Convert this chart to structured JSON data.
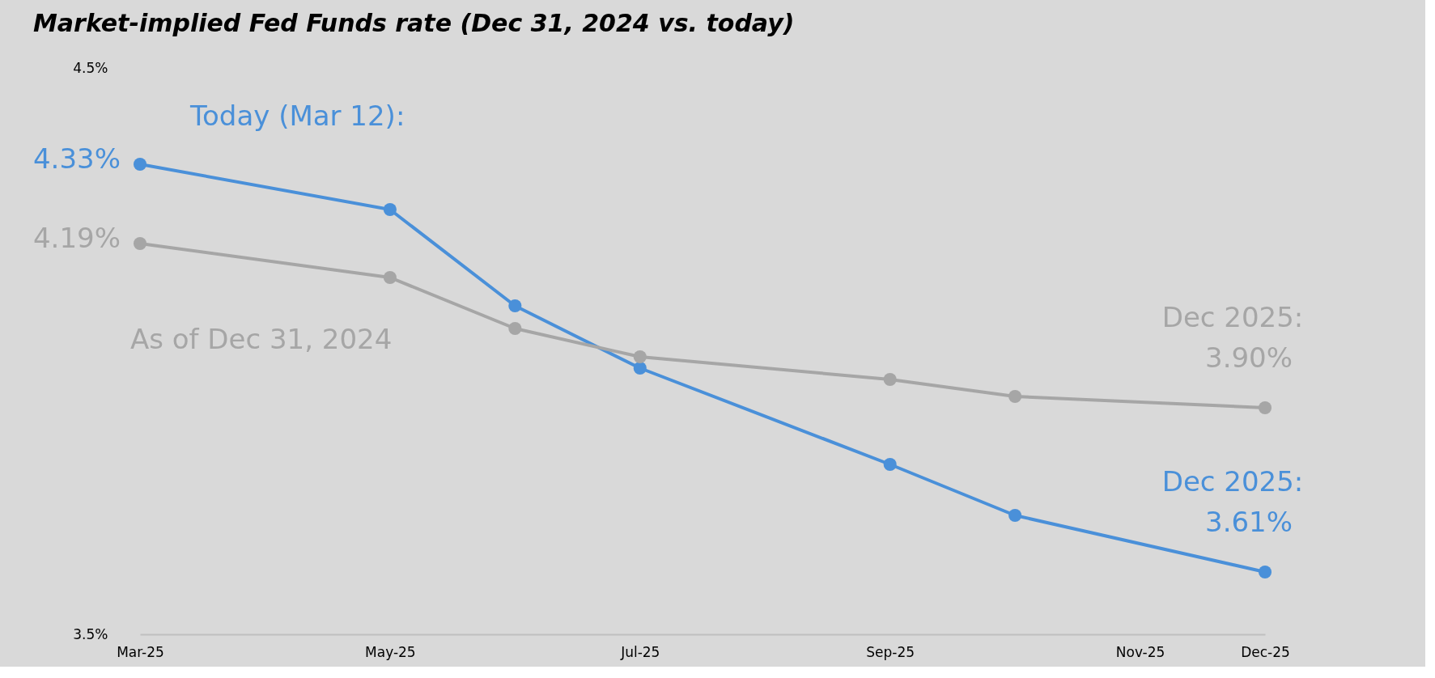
{
  "chart_data": {
    "type": "line",
    "title": "Market-implied Fed Funds rate (Dec 31, 2024 vs. today)",
    "categories": [
      "Mar-25",
      null,
      "May-25",
      null,
      "Jul-25",
      null,
      "Sep-25",
      null,
      "Nov-25",
      "Dec-25"
    ],
    "series": [
      {
        "name": "Today (Mar 12):",
        "color": "#4a90d9",
        "values": [
          4.33,
          null,
          4.25,
          4.08,
          3.97,
          null,
          3.8,
          3.71,
          null,
          3.61
        ],
        "value_labels": [
          "4.33%",
          null,
          null,
          null,
          null,
          null,
          null,
          null,
          null,
          "3.61%"
        ]
      },
      {
        "name": "As of Dec 31, 2024",
        "color": "#a6a6a6",
        "values": [
          4.19,
          null,
          4.13,
          4.04,
          3.99,
          null,
          3.95,
          3.92,
          null,
          3.9
        ],
        "value_labels": [
          "4.19%",
          null,
          null,
          null,
          null,
          null,
          null,
          null,
          null,
          "3.90%"
        ]
      }
    ],
    "annotations": [
      "Dec 2025:",
      "Dec 2025:"
    ],
    "ylim": [
      3.5,
      4.5
    ],
    "yticks": [
      {
        "value": 3.5,
        "label": "3.5%"
      },
      {
        "value": 4.5,
        "label": "4.5%"
      }
    ],
    "marker": "circle",
    "line_style": "solid"
  }
}
